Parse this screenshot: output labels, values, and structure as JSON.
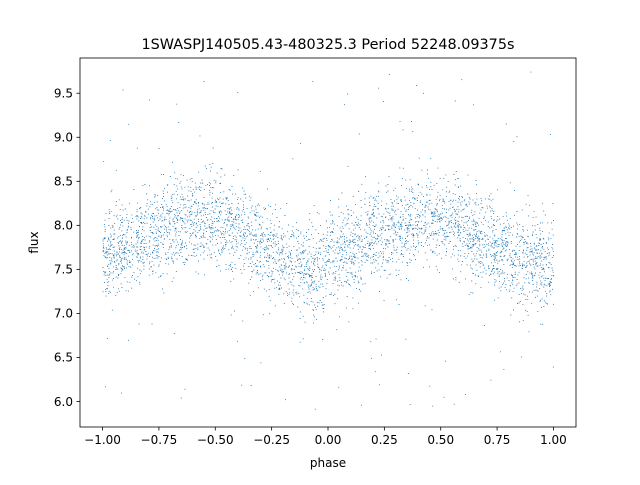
{
  "chart_data": {
    "type": "scatter",
    "title": "1SWASPJ140505.43-480325.3 Period 52248.09375s",
    "xlabel": "phase",
    "ylabel": "flux",
    "xlim": [
      -1.1,
      1.1
    ],
    "ylim": [
      5.71,
      9.9
    ],
    "x_ticks": [
      "−1.00",
      "−0.75",
      "−0.50",
      "−0.25",
      "0.00",
      "0.25",
      "0.50",
      "0.75",
      "1.00"
    ],
    "x_tick_values": [
      -1.0,
      -0.75,
      -0.5,
      -0.25,
      0.0,
      0.25,
      0.5,
      0.75,
      1.0
    ],
    "y_ticks": [
      "6.0",
      "6.5",
      "7.0",
      "7.5",
      "8.0",
      "8.5",
      "9.0",
      "9.5"
    ],
    "y_tick_values": [
      6.0,
      6.5,
      7.0,
      7.5,
      8.0,
      8.5,
      9.0,
      9.5
    ],
    "grid": false,
    "point_color": "#1f77b4",
    "series": [
      {
        "trend_x": [
          -1.0,
          -0.9,
          -0.8,
          -0.7,
          -0.6,
          -0.5,
          -0.4,
          -0.3,
          -0.2,
          -0.1,
          0.0,
          0.1,
          0.2,
          0.3,
          0.4,
          0.5,
          0.6,
          0.7,
          0.8,
          0.9,
          1.0
        ],
        "trend_y": [
          7.62,
          7.75,
          7.88,
          8.0,
          8.07,
          8.05,
          7.95,
          7.78,
          7.58,
          7.5,
          7.55,
          7.7,
          7.87,
          8.0,
          8.07,
          8.05,
          7.95,
          7.8,
          7.65,
          7.58,
          7.55
        ],
        "scatter_sd": 0.25,
        "outlier_range": [
          5.9,
          9.75
        ]
      }
    ]
  }
}
